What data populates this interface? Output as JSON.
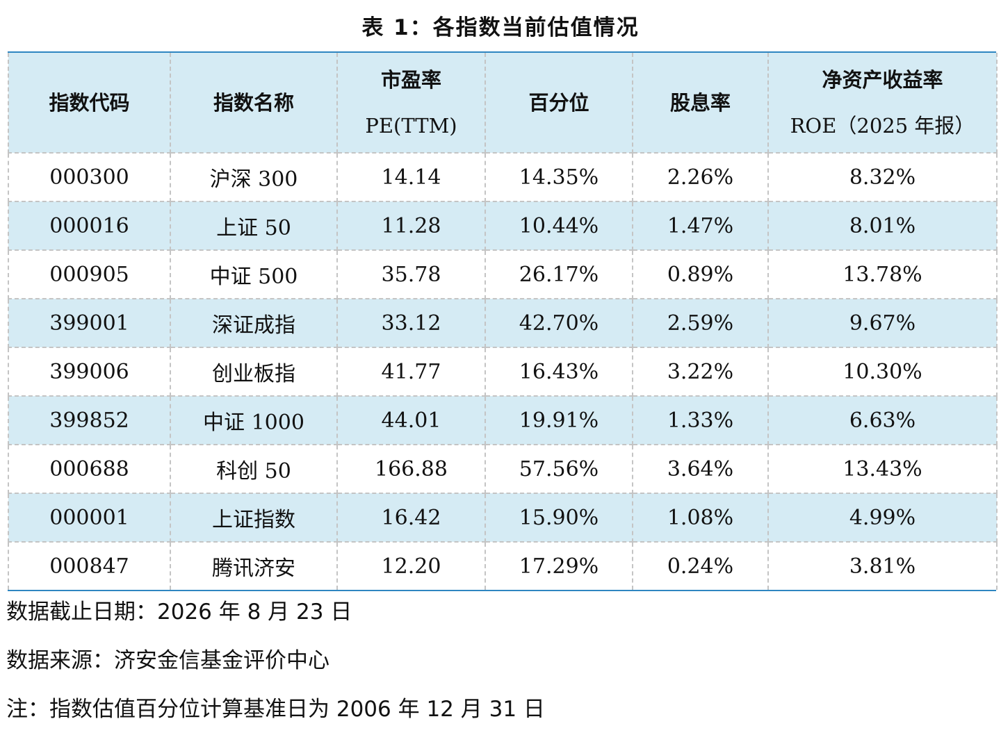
{
  "title": "表 1：各指数当前估值情况",
  "table": {
    "headers": [
      {
        "line1": "指数代码",
        "line2": ""
      },
      {
        "line1": "指数名称",
        "line2": ""
      },
      {
        "line1": "市盈率",
        "line2": "PE(TTM)"
      },
      {
        "line1": "百分位",
        "line2": ""
      },
      {
        "line1": "股息率",
        "line2": ""
      },
      {
        "line1": "净资产收益率",
        "line2": "ROE（2025 年报）"
      }
    ],
    "rows": [
      [
        "000300",
        "沪深 300",
        "14.14",
        "14.35%",
        "2.26%",
        "8.32%"
      ],
      [
        "000016",
        "上证 50",
        "11.28",
        "10.44%",
        "1.47%",
        "8.01%"
      ],
      [
        "000905",
        "中证 500",
        "35.78",
        "26.17%",
        "0.89%",
        "13.78%"
      ],
      [
        "399001",
        "深证成指",
        "33.12",
        "42.70%",
        "2.59%",
        "9.67%"
      ],
      [
        "399006",
        "创业板指",
        "41.77",
        "16.43%",
        "3.22%",
        "10.30%"
      ],
      [
        "399852",
        "中证 1000",
        "44.01",
        "19.91%",
        "1.33%",
        "6.63%"
      ],
      [
        "000688",
        "科创 50",
        "166.88",
        "57.56%",
        "3.64%",
        "13.43%"
      ],
      [
        "000001",
        "上证指数",
        "16.42",
        "15.90%",
        "1.08%",
        "4.99%"
      ],
      [
        "000847",
        "腾讯济安",
        "12.20",
        "17.29%",
        "0.24%",
        "3.81%"
      ]
    ]
  },
  "notes": [
    "数据截止日期：2026 年 8 月 23 日",
    "数据来源：济安金信基金评价中心",
    "注：指数估值百分位计算基准日为 2006 年 12 月 31 日"
  ],
  "colors": {
    "band": "#d5ebf4",
    "rule": "#2e86c1",
    "grid": "#c4c4c4"
  }
}
